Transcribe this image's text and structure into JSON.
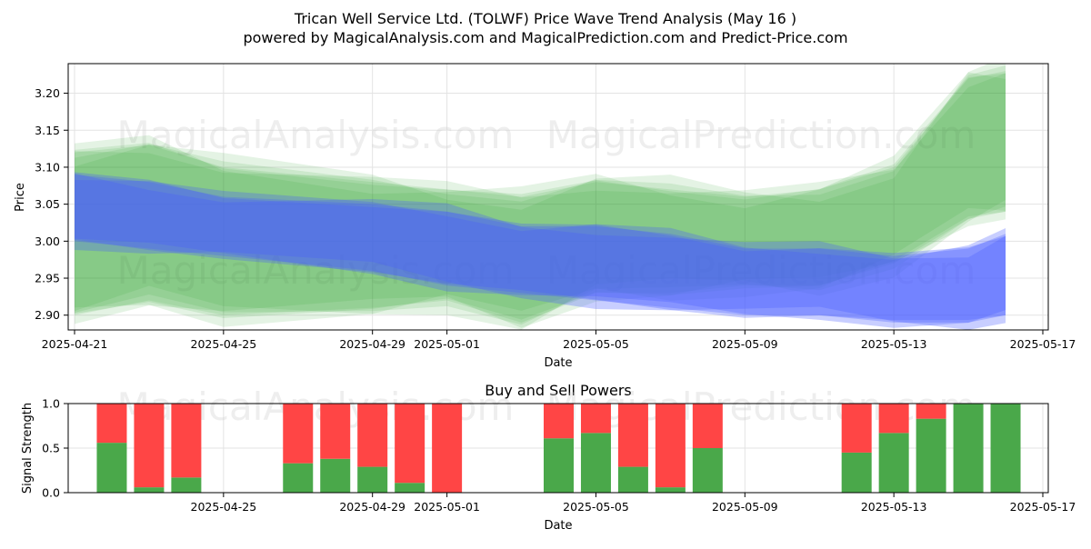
{
  "title_line1": "Trican Well Service Ltd. (TOLWF) Price Wave Trend Analysis (May 16 )",
  "title_line2": "powered by MagicalAnalysis.com and MagicalPrediction.com and Predict-Price.com",
  "watermarks": [
    "MagicalAnalysis.com",
    "MagicalPrediction.com"
  ],
  "chart_data": [
    {
      "type": "area",
      "title": "",
      "xlabel": "Date",
      "ylabel": "Price",
      "x_ticks": [
        "2025-04-21",
        "2025-04-25",
        "2025-04-29",
        "2025-05-01",
        "2025-05-05",
        "2025-05-09",
        "2025-05-13",
        "2025-05-17"
      ],
      "y_ticks": [
        "2.90",
        "2.95",
        "3.00",
        "3.05",
        "3.10",
        "3.15",
        "3.20"
      ],
      "xlim": [
        "2025-04-21",
        "2025-05-17"
      ],
      "ylim": [
        2.88,
        3.24
      ],
      "grid": true,
      "series": [
        {
          "color": "#4a5cff",
          "x": [
            "2025-04-21",
            "2025-04-23",
            "2025-04-25",
            "2025-04-29",
            "2025-05-01",
            "2025-05-03",
            "2025-05-05",
            "2025-05-07",
            "2025-05-09",
            "2025-05-11",
            "2025-05-13",
            "2025-05-15",
            "2025-05-16"
          ],
          "upper": [
            3.09,
            3.08,
            3.06,
            3.05,
            3.04,
            3.02,
            3.02,
            3.01,
            2.99,
            2.99,
            2.98,
            2.99,
            3.01
          ],
          "lower": [
            3.0,
            2.99,
            2.98,
            2.96,
            2.94,
            2.93,
            2.92,
            2.91,
            2.9,
            2.9,
            2.89,
            2.89,
            2.9
          ]
        },
        {
          "color": "#2ca02c",
          "x": [
            "2025-04-21",
            "2025-04-23",
            "2025-04-25",
            "2025-04-29",
            "2025-05-01",
            "2025-05-03",
            "2025-05-05",
            "2025-05-07",
            "2025-05-09",
            "2025-05-11",
            "2025-05-13",
            "2025-05-15",
            "2025-05-16"
          ],
          "upper": [
            3.12,
            3.13,
            3.1,
            3.08,
            3.07,
            3.06,
            3.08,
            3.07,
            3.06,
            3.07,
            3.1,
            3.22,
            3.23
          ],
          "lower": [
            2.9,
            2.92,
            2.9,
            2.91,
            2.92,
            2.89,
            2.93,
            2.93,
            2.94,
            2.94,
            2.97,
            3.03,
            3.04
          ]
        }
      ]
    },
    {
      "type": "bar",
      "title": "Buy and Sell Powers",
      "xlabel": "Date",
      "ylabel": "Signal Strength",
      "x_ticks": [
        "2025-04-25",
        "2025-04-29",
        "2025-05-01",
        "2025-05-05",
        "2025-05-09",
        "2025-05-13",
        "2025-05-17"
      ],
      "y_ticks": [
        "0.0",
        "0.5",
        "1.0"
      ],
      "ylim": [
        0,
        1
      ],
      "grid": true,
      "categories": [
        "2025-04-22",
        "2025-04-23",
        "2025-04-24",
        "2025-04-27",
        "2025-04-28",
        "2025-04-29",
        "2025-04-30",
        "2025-05-01",
        "2025-05-04",
        "2025-05-05",
        "2025-05-06",
        "2025-05-07",
        "2025-05-08",
        "2025-05-12",
        "2025-05-13",
        "2025-05-14",
        "2025-05-15",
        "2025-05-16"
      ],
      "series": [
        {
          "color": "#4aa84a",
          "values": [
            0.56,
            0.06,
            0.17,
            0.33,
            0.38,
            0.29,
            0.11,
            0.0,
            0.61,
            0.67,
            0.29,
            0.06,
            0.5,
            0.45,
            0.67,
            0.83,
            1.0,
            1.0
          ]
        },
        {
          "color": "#ff4545",
          "values": [
            0.44,
            0.94,
            0.83,
            0.67,
            0.62,
            0.71,
            0.89,
            1.0,
            0.39,
            0.33,
            0.71,
            0.94,
            0.5,
            0.55,
            0.33,
            0.17,
            0.0,
            0.0
          ]
        }
      ]
    }
  ]
}
